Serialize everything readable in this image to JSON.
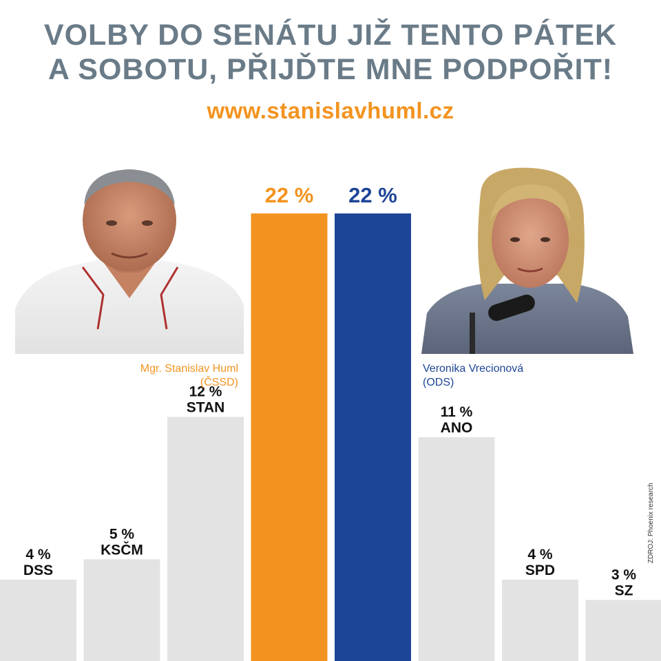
{
  "headline": {
    "line1": "VOLBY DO SENÁTU JIŽ TENTO PÁTEK",
    "line2": "A SOBOTU, PŘIJĎTE MNE PODPOŘIT!"
  },
  "url": "www.stanislavhuml.cz",
  "candidates": {
    "left": {
      "name": "Mgr. Stanislav Huml",
      "party": "(ČSSD)"
    },
    "right": {
      "name": "Veronika Vrecionová",
      "party": "(ODS)"
    }
  },
  "source": "ZDROJ: Phoenix research",
  "colors": {
    "orange": "#f3931f",
    "blue": "#1d4597",
    "grey_bar": "#e3e3e3",
    "headline": "#6a7b88"
  },
  "chart_data": {
    "type": "bar",
    "title": "",
    "xlabel": "",
    "ylabel": "",
    "unit": "%",
    "categories": [
      "DSS",
      "KSČM",
      "STAN",
      "ČSSD",
      "ODS",
      "ANO",
      "SPD",
      "SZ"
    ],
    "values": [
      4,
      5,
      12,
      22,
      22,
      11,
      4,
      3
    ],
    "value_labels": [
      "4 %",
      "5 %",
      "12 %",
      "22 %",
      "22 %",
      "11 %",
      "4 %",
      "3 %"
    ],
    "category_labels_shown": [
      "DSS",
      "KSČM",
      "STAN",
      "",
      "",
      "ANO",
      "SPD",
      "SZ"
    ],
    "bar_colors": [
      "#e3e3e3",
      "#e3e3e3",
      "#e3e3e3",
      "#f3931f",
      "#1d4597",
      "#e3e3e3",
      "#e3e3e3",
      "#e3e3e3"
    ],
    "grid": false
  }
}
